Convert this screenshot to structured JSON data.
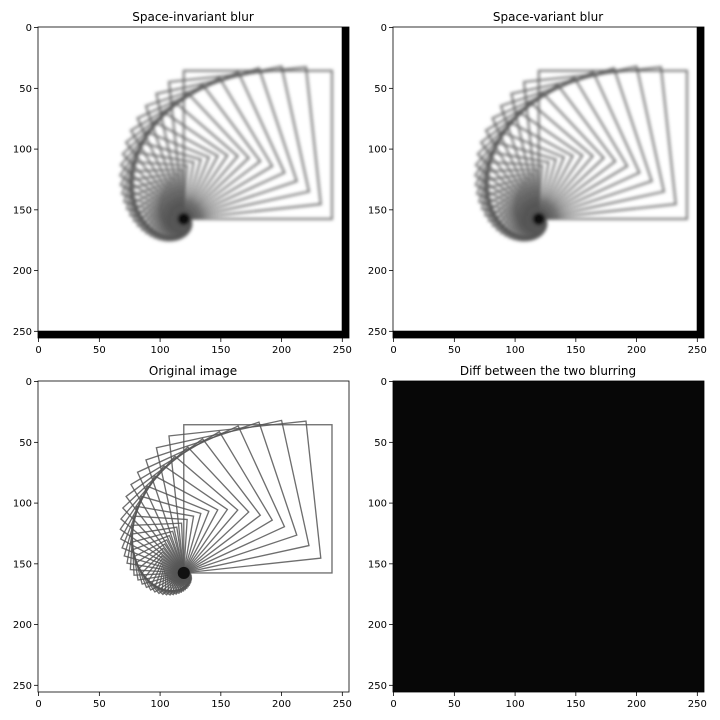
{
  "chart_data": [
    {
      "type": "heatmap",
      "title": "Space-invariant blur",
      "content": "blurred spiral of rotated squares",
      "xlim": [
        0,
        255
      ],
      "ylim": [
        255,
        0
      ],
      "xticks": [
        0,
        50,
        100,
        150,
        200,
        250
      ],
      "yticks": [
        0,
        50,
        100,
        150,
        200,
        250
      ],
      "colormap": "gray",
      "blur_level": 1.3,
      "edge_artifact": "black borders on right and bottom"
    },
    {
      "type": "heatmap",
      "title": "Space-variant blur",
      "content": "blurred spiral of rotated squares",
      "xlim": [
        0,
        255
      ],
      "ylim": [
        255,
        0
      ],
      "xticks": [
        0,
        50,
        100,
        150,
        200,
        250
      ],
      "yticks": [
        0,
        50,
        100,
        150,
        200,
        250
      ],
      "colormap": "gray",
      "blur_level": 1.3,
      "edge_artifact": "black borders on right and bottom"
    },
    {
      "type": "heatmap",
      "title": "Original image",
      "content": "sharp spiral of rotated squares",
      "xlim": [
        0,
        255
      ],
      "ylim": [
        255,
        0
      ],
      "xticks": [
        0,
        50,
        100,
        150,
        200,
        250
      ],
      "yticks": [
        0,
        50,
        100,
        150,
        200,
        250
      ],
      "colormap": "gray",
      "blur_level": 0
    },
    {
      "type": "heatmap",
      "title": "Diff between the two blurring",
      "content": "near-black difference image",
      "xlim": [
        0,
        255
      ],
      "ylim": [
        255,
        0
      ],
      "xticks": [
        0,
        50,
        100,
        150,
        200,
        250
      ],
      "yticks": [
        0,
        50,
        100,
        150,
        200,
        250
      ],
      "colormap": "gray",
      "fill_color": "#070707"
    }
  ],
  "spiral": {
    "center": [
      120,
      158
    ],
    "square_count": 48,
    "max_size": 122,
    "min_size": 4,
    "max_angle_deg": 290,
    "stroke_color": "#555555"
  }
}
